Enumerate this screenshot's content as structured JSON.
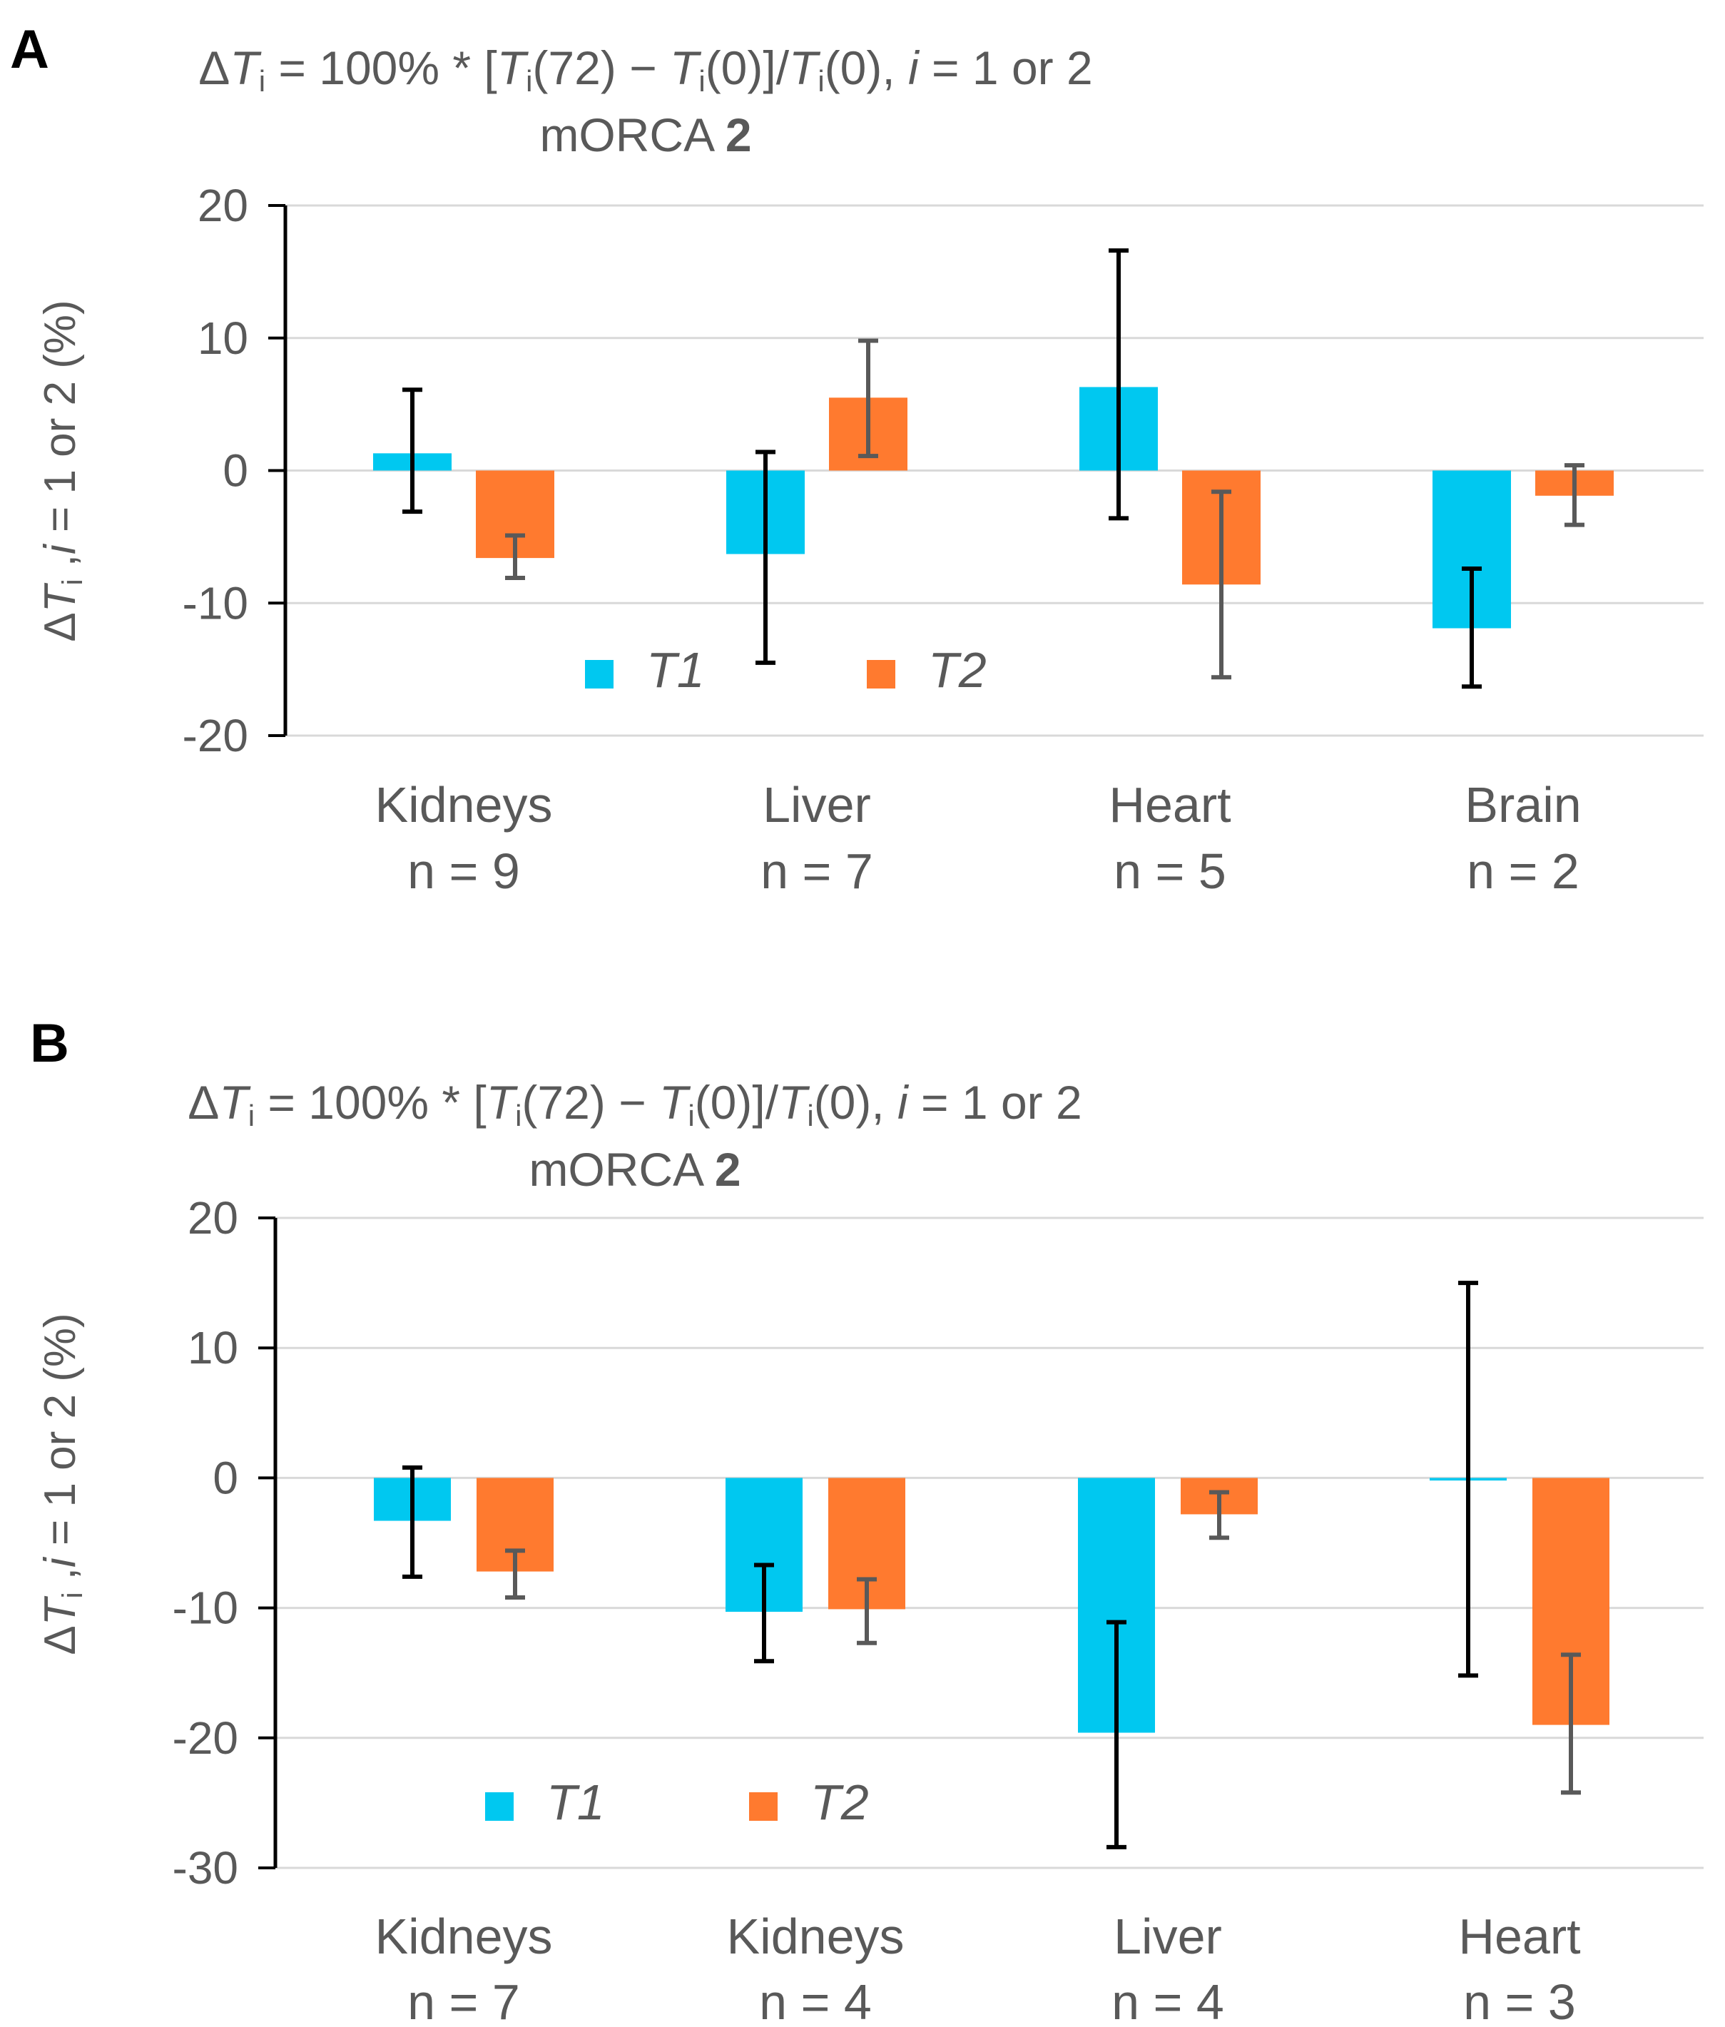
{
  "colors": {
    "t1": "#00C8F0",
    "t2": "#FF7A2F",
    "t1_err": "#000000",
    "t2_err": "#595959",
    "grid": "#d9d9d9",
    "axis": "#000000",
    "text": "#595959"
  },
  "chart_data": [
    {
      "type": "bar",
      "panel": "A",
      "title_prefix": "Δ",
      "title_T": "T",
      "title_i": "i",
      "title_mid": " = 100% * [",
      "title_72": "(72) − ",
      "title_0": "(0)]/",
      "title_end": "(0),  ",
      "title_i_word": "i",
      "title_tail": " = 1 or 2",
      "subtitle_plain": "mORCA ",
      "subtitle_bold": "2",
      "ylabel_prefix": "Δ",
      "ylabel_T": "T",
      "ylabel_sub": "i",
      "ylabel_mid": " ,",
      "ylabel_i": "i",
      "ylabel_tail": " = 1 or 2  (%)",
      "ylim": [
        -20,
        20
      ],
      "yticks": [
        20,
        10,
        0,
        -10,
        -20
      ],
      "ytick_labels": [
        "20",
        "10",
        "0",
        "-10",
        "-20"
      ],
      "categories": [
        "Kidneys",
        "Liver",
        "Heart",
        "Brain"
      ],
      "n_labels": [
        "n = 9",
        "n = 7",
        "n = 5",
        "n = 2"
      ],
      "series": [
        {
          "name": "T1",
          "values": [
            1.3,
            -6.3,
            6.3,
            -11.9
          ],
          "err_low": [
            -3.1,
            -14.5,
            -3.6,
            -16.3
          ],
          "err_high": [
            6.1,
            1.4,
            16.6,
            -7.4
          ]
        },
        {
          "name": "T2",
          "values": [
            -6.6,
            5.5,
            -8.6,
            -1.9
          ],
          "err_low": [
            -8.1,
            1.1,
            -15.6,
            -4.1
          ],
          "err_high": [
            -4.9,
            9.8,
            -1.6,
            0.4
          ]
        }
      ],
      "legend": [
        "T1",
        "T2"
      ]
    },
    {
      "type": "bar",
      "panel": "B",
      "title_prefix": "Δ",
      "title_T": "T",
      "title_i": "i",
      "title_mid": " = 100% * [",
      "title_72": "(72) − ",
      "title_0": "(0)]/",
      "title_end": "(0),  ",
      "title_i_word": "i",
      "title_tail": " = 1 or 2",
      "subtitle_plain": "mORCA ",
      "subtitle_bold": "2",
      "ylabel_prefix": "Δ",
      "ylabel_T": "T",
      "ylabel_sub": "i",
      "ylabel_mid": " ,",
      "ylabel_i": "i",
      "ylabel_tail": " = 1 or 2  (%)",
      "ylim": [
        -30,
        20
      ],
      "yticks": [
        20,
        10,
        0,
        -10,
        -20,
        -30
      ],
      "ytick_labels": [
        "20",
        "10",
        "0",
        "-10",
        "-20",
        "-30"
      ],
      "categories": [
        "Kidneys",
        "Kidneys",
        "Liver",
        "Heart"
      ],
      "n_labels": [
        "n = 7",
        "n = 4",
        "n = 4",
        "n = 3"
      ],
      "series": [
        {
          "name": "T1",
          "values": [
            -3.3,
            -10.3,
            -19.6,
            -0.2
          ],
          "err_low": [
            -7.6,
            -14.1,
            -28.4,
            -15.2
          ],
          "err_high": [
            0.8,
            -6.7,
            -11.1,
            15.0
          ]
        },
        {
          "name": "T2",
          "values": [
            -7.2,
            -10.1,
            -2.8,
            -19.0
          ],
          "err_low": [
            -9.2,
            -12.7,
            -4.6,
            -24.2
          ],
          "err_high": [
            -5.6,
            -7.8,
            -1.1,
            -13.6
          ]
        }
      ],
      "legend": [
        "T1",
        "T2"
      ]
    }
  ]
}
